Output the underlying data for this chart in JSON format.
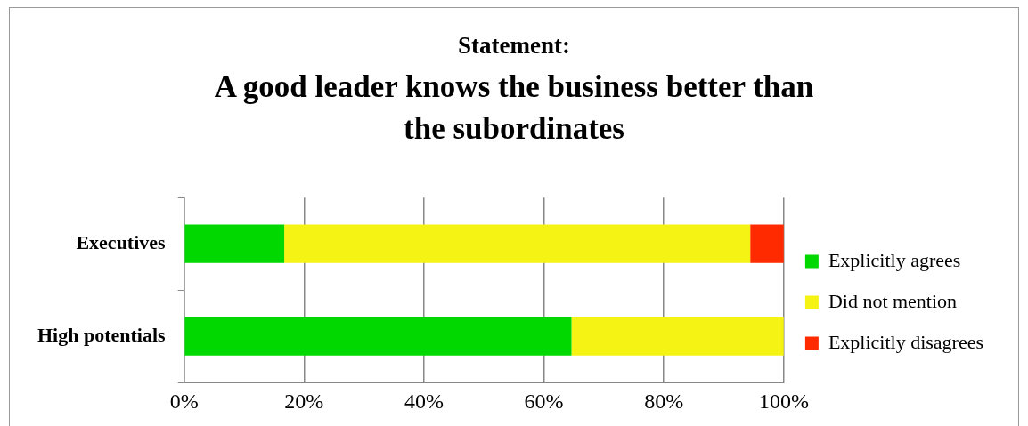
{
  "chart_data": {
    "type": "bar",
    "orientation": "horizontal",
    "stacked": true,
    "title": "Statement:",
    "subtitle": "A good leader knows the business better than the subordinates",
    "categories": [
      "Executives",
      "High potentials"
    ],
    "series": [
      {
        "name": "Explicitly agrees",
        "color": "#00d800",
        "values": [
          16.7,
          64.6
        ]
      },
      {
        "name": "Did not mention",
        "color": "#f5f314",
        "values": [
          77.7,
          35.4
        ]
      },
      {
        "name": "Explicitly disagrees",
        "color": "#ff2a00",
        "values": [
          5.6,
          null
        ]
      }
    ],
    "xlim": [
      0,
      100
    ],
    "xticks": [
      {
        "value": 0,
        "label": "0%"
      },
      {
        "value": 20,
        "label": "20%"
      },
      {
        "value": 40,
        "label": "40%"
      },
      {
        "value": 60,
        "label": "60%"
      },
      {
        "value": 80,
        "label": "80%"
      },
      {
        "value": 100,
        "label": "100%"
      }
    ],
    "grid": "x",
    "legend": "right"
  }
}
